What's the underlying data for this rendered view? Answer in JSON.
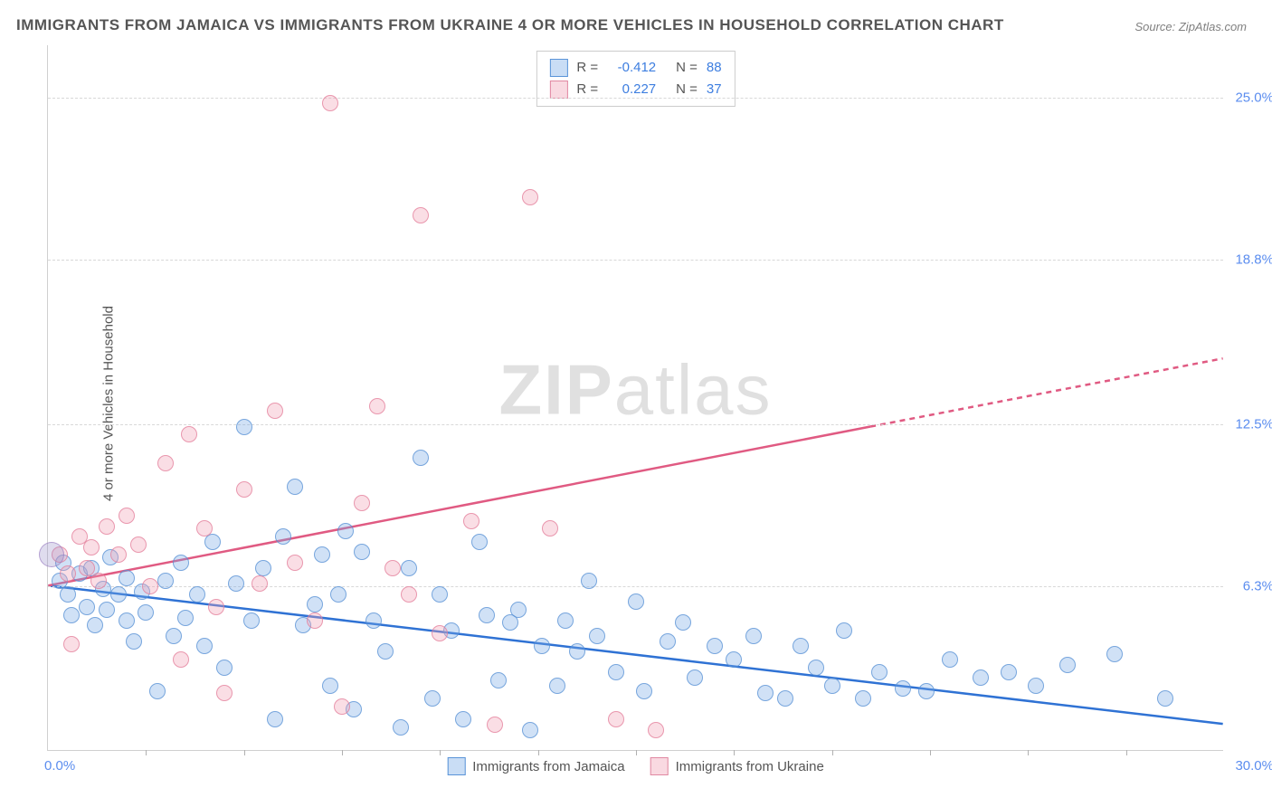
{
  "title": "IMMIGRANTS FROM JAMAICA VS IMMIGRANTS FROM UKRAINE 4 OR MORE VEHICLES IN HOUSEHOLD CORRELATION CHART",
  "source": "Source: ZipAtlas.com",
  "y_axis_label": "4 or more Vehicles in Household",
  "watermark_bold": "ZIP",
  "watermark_rest": "atlas",
  "chart": {
    "type": "scatter",
    "xlim": [
      0,
      30
    ],
    "ylim": [
      0,
      27
    ],
    "y_ticks": [
      6.3,
      12.5,
      18.8,
      25.0
    ],
    "y_tick_labels": [
      "6.3%",
      "12.5%",
      "18.8%",
      "25.0%"
    ],
    "x_ticks": [
      0,
      30
    ],
    "x_tick_labels": [
      "0.0%",
      "30.0%"
    ],
    "x_minor_ticks": [
      2.5,
      5,
      7.5,
      10,
      12.5,
      15,
      17.5,
      20,
      22.5,
      25,
      27.5
    ],
    "background_color": "#ffffff",
    "grid_color": "#d8d8d8",
    "point_radius": 9,
    "series": [
      {
        "name": "Immigrants from Jamaica",
        "color_fill": "rgba(120,170,230,0.35)",
        "color_stroke": "#5a94d8",
        "trend_color": "#2f72d4",
        "trend": {
          "x0": 0,
          "y0": 6.3,
          "x1": 30,
          "y1": 1.0,
          "dash_from_x": null
        },
        "R": "-0.412",
        "N": "88",
        "points": [
          [
            0.3,
            6.5
          ],
          [
            0.4,
            7.2
          ],
          [
            0.5,
            6.0
          ],
          [
            0.6,
            5.2
          ],
          [
            0.8,
            6.8
          ],
          [
            1.0,
            5.5
          ],
          [
            1.1,
            7.0
          ],
          [
            1.2,
            4.8
          ],
          [
            1.4,
            6.2
          ],
          [
            1.5,
            5.4
          ],
          [
            1.6,
            7.4
          ],
          [
            1.8,
            6.0
          ],
          [
            2.0,
            5.0
          ],
          [
            2.0,
            6.6
          ],
          [
            2.2,
            4.2
          ],
          [
            2.4,
            6.1
          ],
          [
            2.5,
            5.3
          ],
          [
            2.8,
            2.3
          ],
          [
            3.0,
            6.5
          ],
          [
            3.2,
            4.4
          ],
          [
            3.4,
            7.2
          ],
          [
            3.5,
            5.1
          ],
          [
            3.8,
            6.0
          ],
          [
            4.0,
            4.0
          ],
          [
            4.2,
            8.0
          ],
          [
            4.5,
            3.2
          ],
          [
            4.8,
            6.4
          ],
          [
            5.0,
            12.4
          ],
          [
            5.2,
            5.0
          ],
          [
            5.5,
            7.0
          ],
          [
            5.8,
            1.2
          ],
          [
            6.0,
            8.2
          ],
          [
            6.3,
            10.1
          ],
          [
            6.5,
            4.8
          ],
          [
            6.8,
            5.6
          ],
          [
            7.0,
            7.5
          ],
          [
            7.2,
            2.5
          ],
          [
            7.4,
            6.0
          ],
          [
            7.6,
            8.4
          ],
          [
            7.8,
            1.6
          ],
          [
            8.0,
            7.6
          ],
          [
            8.3,
            5.0
          ],
          [
            8.6,
            3.8
          ],
          [
            9.0,
            0.9
          ],
          [
            9.2,
            7.0
          ],
          [
            9.5,
            11.2
          ],
          [
            9.8,
            2.0
          ],
          [
            10.0,
            6.0
          ],
          [
            10.3,
            4.6
          ],
          [
            10.6,
            1.2
          ],
          [
            11.0,
            8.0
          ],
          [
            11.2,
            5.2
          ],
          [
            11.5,
            2.7
          ],
          [
            11.8,
            4.9
          ],
          [
            12.0,
            5.4
          ],
          [
            12.3,
            0.8
          ],
          [
            12.6,
            4.0
          ],
          [
            13.0,
            2.5
          ],
          [
            13.2,
            5.0
          ],
          [
            13.5,
            3.8
          ],
          [
            13.8,
            6.5
          ],
          [
            14.0,
            4.4
          ],
          [
            14.5,
            3.0
          ],
          [
            15.0,
            5.7
          ],
          [
            15.2,
            2.3
          ],
          [
            15.8,
            4.2
          ],
          [
            16.2,
            4.9
          ],
          [
            16.5,
            2.8
          ],
          [
            17.0,
            4.0
          ],
          [
            17.5,
            3.5
          ],
          [
            18.0,
            4.4
          ],
          [
            18.3,
            2.2
          ],
          [
            18.8,
            2.0
          ],
          [
            19.2,
            4.0
          ],
          [
            19.6,
            3.2
          ],
          [
            20.0,
            2.5
          ],
          [
            20.3,
            4.6
          ],
          [
            20.8,
            2.0
          ],
          [
            21.2,
            3.0
          ],
          [
            21.8,
            2.4
          ],
          [
            22.4,
            2.3
          ],
          [
            23.0,
            3.5
          ],
          [
            23.8,
            2.8
          ],
          [
            24.5,
            3.0
          ],
          [
            25.2,
            2.5
          ],
          [
            26.0,
            3.3
          ],
          [
            27.2,
            3.7
          ],
          [
            28.5,
            2.0
          ]
        ]
      },
      {
        "name": "Immigrants from Ukraine",
        "color_fill": "rgba(240,160,180,0.35)",
        "color_stroke": "#e188a2",
        "trend_color": "#e05a82",
        "trend": {
          "x0": 0,
          "y0": 6.3,
          "x1": 30,
          "y1": 15.0,
          "dash_from_x": 21
        },
        "R": "0.227",
        "N": "37",
        "points": [
          [
            0.3,
            7.5
          ],
          [
            0.5,
            6.8
          ],
          [
            0.6,
            4.1
          ],
          [
            0.8,
            8.2
          ],
          [
            1.0,
            7.0
          ],
          [
            1.1,
            7.8
          ],
          [
            1.3,
            6.5
          ],
          [
            1.5,
            8.6
          ],
          [
            1.8,
            7.5
          ],
          [
            2.0,
            9.0
          ],
          [
            2.3,
            7.9
          ],
          [
            2.6,
            6.3
          ],
          [
            3.0,
            11.0
          ],
          [
            3.4,
            3.5
          ],
          [
            3.6,
            12.1
          ],
          [
            4.0,
            8.5
          ],
          [
            4.3,
            5.5
          ],
          [
            4.5,
            2.2
          ],
          [
            5.0,
            10.0
          ],
          [
            5.4,
            6.4
          ],
          [
            5.8,
            13.0
          ],
          [
            6.3,
            7.2
          ],
          [
            6.8,
            5.0
          ],
          [
            7.2,
            24.8
          ],
          [
            7.5,
            1.7
          ],
          [
            8.0,
            9.5
          ],
          [
            8.4,
            13.2
          ],
          [
            8.8,
            7.0
          ],
          [
            9.2,
            6.0
          ],
          [
            9.5,
            20.5
          ],
          [
            10.0,
            4.5
          ],
          [
            10.8,
            8.8
          ],
          [
            11.4,
            1.0
          ],
          [
            12.3,
            21.2
          ],
          [
            12.8,
            8.5
          ],
          [
            14.5,
            1.2
          ],
          [
            15.5,
            0.8
          ]
        ]
      }
    ]
  },
  "stats_legend": {
    "r_label": "R =",
    "n_label": "N ="
  },
  "bottom_legend": {
    "items": [
      "Immigrants from Jamaica",
      "Immigrants from Ukraine"
    ]
  }
}
